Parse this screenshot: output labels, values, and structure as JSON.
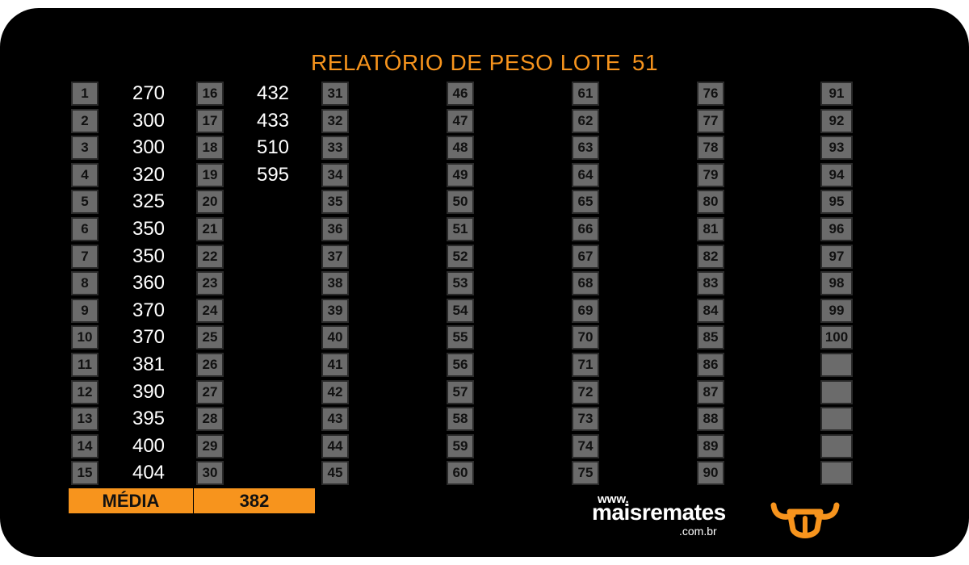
{
  "report": {
    "title": "RELATÓRIO DE PESO LOTE",
    "lot_number": "51"
  },
  "columns": [
    {
      "numbers": [
        "1",
        "2",
        "3",
        "4",
        "5",
        "6",
        "7",
        "8",
        "9",
        "10",
        "11",
        "12",
        "13",
        "14",
        "15"
      ],
      "weights": [
        "270",
        "300",
        "300",
        "320",
        "325",
        "350",
        "350",
        "360",
        "370",
        "370",
        "381",
        "390",
        "395",
        "400",
        "404"
      ]
    },
    {
      "numbers": [
        "16",
        "17",
        "18",
        "19",
        "20",
        "21",
        "22",
        "23",
        "24",
        "25",
        "26",
        "27",
        "28",
        "29",
        "30"
      ],
      "weights": [
        "432",
        "433",
        "510",
        "595",
        "",
        "",
        "",
        "",
        "",
        "",
        "",
        "",
        "",
        "",
        ""
      ]
    },
    {
      "numbers": [
        "31",
        "32",
        "33",
        "34",
        "35",
        "36",
        "37",
        "38",
        "39",
        "40",
        "41",
        "42",
        "43",
        "44",
        "45"
      ],
      "weights": [
        "",
        "",
        "",
        "",
        "",
        "",
        "",
        "",
        "",
        "",
        "",
        "",
        "",
        "",
        ""
      ]
    },
    {
      "numbers": [
        "46",
        "47",
        "48",
        "49",
        "50",
        "51",
        "52",
        "53",
        "54",
        "55",
        "56",
        "57",
        "58",
        "59",
        "60"
      ],
      "weights": [
        "",
        "",
        "",
        "",
        "",
        "",
        "",
        "",
        "",
        "",
        "",
        "",
        "",
        "",
        ""
      ]
    },
    {
      "numbers": [
        "61",
        "62",
        "63",
        "64",
        "65",
        "66",
        "67",
        "68",
        "69",
        "70",
        "71",
        "72",
        "73",
        "74",
        "75"
      ],
      "weights": [
        "",
        "",
        "",
        "",
        "",
        "",
        "",
        "",
        "",
        "",
        "",
        "",
        "",
        "",
        ""
      ]
    },
    {
      "numbers": [
        "76",
        "77",
        "78",
        "79",
        "80",
        "81",
        "82",
        "83",
        "84",
        "85",
        "86",
        "87",
        "88",
        "89",
        "90"
      ],
      "weights": [
        "",
        "",
        "",
        "",
        "",
        "",
        "",
        "",
        "",
        "",
        "",
        "",
        "",
        "",
        ""
      ]
    },
    {
      "numbers": [
        "91",
        "92",
        "93",
        "94",
        "95",
        "96",
        "97",
        "98",
        "99",
        "100",
        "",
        "",
        "",
        "",
        ""
      ],
      "weights": [
        "",
        "",
        "",
        "",
        "",
        "",
        "",
        "",
        "",
        "",
        "",
        "",
        "",
        "",
        ""
      ]
    }
  ],
  "summary": {
    "label": "MÉDIA",
    "value": "382"
  },
  "brand": {
    "www": "www.",
    "name": "maisremates",
    "domain": ".com.br",
    "logo_icon": "bull-head-icon"
  },
  "colors": {
    "accent": "#f7941d",
    "cell": "#6b6b6b",
    "background": "#000000"
  }
}
